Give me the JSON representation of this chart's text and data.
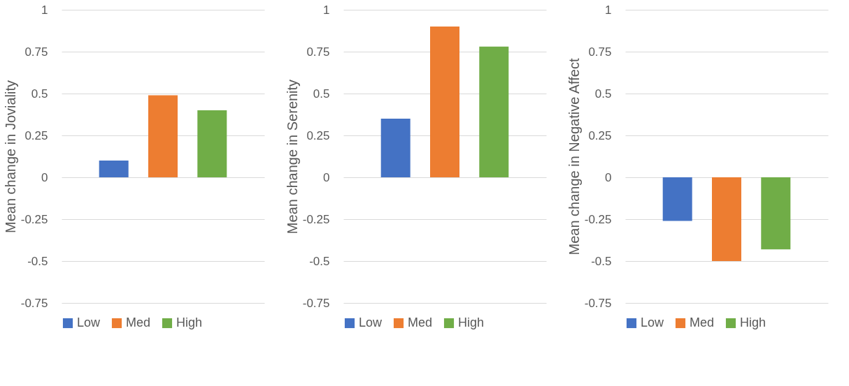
{
  "chart_data": [
    {
      "type": "bar",
      "ylabel": "Mean change in Joviality",
      "categories": [
        null
      ],
      "series": [
        {
          "name": "Low",
          "color": "#4472c4",
          "values": [
            0.1
          ]
        },
        {
          "name": "Med",
          "color": "#ed7d31",
          "values": [
            0.49
          ]
        },
        {
          "name": "High",
          "color": "#70ad47",
          "values": [
            0.4
          ]
        }
      ],
      "ylim": [
        -0.75,
        1
      ],
      "yticks": [
        -0.75,
        -0.5,
        -0.25,
        0,
        0.25,
        0.5,
        0.75,
        1
      ],
      "grid": "y",
      "legend": "bottom"
    },
    {
      "type": "bar",
      "ylabel": "Mean change in Serenity",
      "categories": [
        null
      ],
      "series": [
        {
          "name": "Low",
          "color": "#4472c4",
          "values": [
            0.35
          ]
        },
        {
          "name": "Med",
          "color": "#ed7d31",
          "values": [
            0.9
          ]
        },
        {
          "name": "High",
          "color": "#70ad47",
          "values": [
            0.78
          ]
        }
      ],
      "ylim": [
        -0.75,
        1
      ],
      "yticks": [
        -0.75,
        -0.5,
        -0.25,
        0,
        0.25,
        0.5,
        0.75,
        1
      ],
      "grid": "y",
      "legend": "bottom"
    },
    {
      "type": "bar",
      "ylabel": "Mean change in Negative Affect",
      "categories": [
        null
      ],
      "series": [
        {
          "name": "Low",
          "color": "#4472c4",
          "values": [
            -0.26
          ]
        },
        {
          "name": "Med",
          "color": "#ed7d31",
          "values": [
            -0.5
          ]
        },
        {
          "name": "High",
          "color": "#70ad47",
          "values": [
            -0.43
          ]
        }
      ],
      "ylim": [
        -0.75,
        1
      ],
      "yticks": [
        -0.75,
        -0.5,
        -0.25,
        0,
        0.25,
        0.5,
        0.75,
        1
      ],
      "grid": "y",
      "legend": "bottom"
    }
  ]
}
